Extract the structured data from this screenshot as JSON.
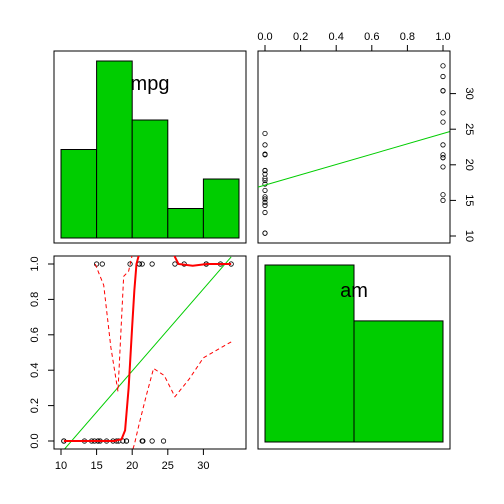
{
  "chart_data": {
    "type": "scatterplot-matrix",
    "variables": [
      "mpg",
      "am"
    ],
    "colors": {
      "hist_fill": "#00cd00",
      "fit_line": "#00cd00",
      "smooth_line": "#ff0000",
      "points": "#000000",
      "axes": "#000000"
    },
    "mpg_hist": {
      "type": "bar",
      "bins": [
        10,
        15,
        20,
        25,
        30,
        35
      ],
      "counts": [
        6,
        12,
        8,
        2,
        4
      ],
      "label": "mpg"
    },
    "am_hist": {
      "type": "bar",
      "bins": [
        0,
        0.5,
        1
      ],
      "counts": [
        19,
        13
      ],
      "label": "am"
    },
    "scatter_mpg_am": {
      "type": "scatter",
      "x_label": "mpg",
      "y_label": "am",
      "xlim": [
        10,
        35
      ],
      "ylim": [
        0,
        1
      ],
      "x_ticks": [
        10,
        15,
        20,
        25,
        30
      ],
      "y_ticks": [
        0.0,
        0.2,
        0.4,
        0.6,
        0.8,
        1.0
      ],
      "points": [
        [
          21.0,
          1
        ],
        [
          21.0,
          1
        ],
        [
          22.8,
          1
        ],
        [
          21.4,
          0
        ],
        [
          18.7,
          0
        ],
        [
          18.1,
          0
        ],
        [
          14.3,
          0
        ],
        [
          24.4,
          0
        ],
        [
          22.8,
          0
        ],
        [
          19.2,
          0
        ],
        [
          17.8,
          0
        ],
        [
          16.4,
          0
        ],
        [
          17.3,
          0
        ],
        [
          15.2,
          0
        ],
        [
          10.4,
          0
        ],
        [
          10.4,
          0
        ],
        [
          14.7,
          0
        ],
        [
          32.4,
          1
        ],
        [
          30.4,
          1
        ],
        [
          33.9,
          1
        ],
        [
          21.5,
          0
        ],
        [
          15.5,
          0
        ],
        [
          15.2,
          0
        ],
        [
          13.3,
          0
        ],
        [
          19.2,
          0
        ],
        [
          27.3,
          1
        ],
        [
          26.0,
          1
        ],
        [
          30.4,
          1
        ],
        [
          15.8,
          1
        ],
        [
          19.7,
          1
        ],
        [
          15.0,
          1
        ],
        [
          21.4,
          1
        ]
      ],
      "fit_line": [
        [
          10.4,
          -0.05
        ],
        [
          33.9,
          1.04
        ]
      ],
      "smooth": [
        [
          10.4,
          0.0
        ],
        [
          17.5,
          0.0
        ],
        [
          18.5,
          0.01
        ],
        [
          19.0,
          0.06
        ],
        [
          19.5,
          0.3
        ],
        [
          20.0,
          0.65
        ],
        [
          20.3,
          0.85
        ],
        [
          20.6,
          1.0
        ],
        [
          21.0,
          1.06
        ],
        [
          25.0,
          1.12
        ],
        [
          26.5,
          1.0
        ],
        [
          28.5,
          0.99
        ],
        [
          30.5,
          1.0
        ],
        [
          33.9,
          1.0
        ]
      ],
      "smooth_upper": [
        [
          14.8,
          1.0
        ],
        [
          16.0,
          0.88
        ],
        [
          17.0,
          0.53
        ],
        [
          18.0,
          0.28
        ],
        [
          18.8,
          0.93
        ],
        [
          19.5,
          0.96
        ],
        [
          20.0,
          1.05
        ]
      ],
      "smooth_lower": [
        [
          19.5,
          -0.12
        ],
        [
          20.3,
          -0.02
        ],
        [
          21.0,
          0.1
        ],
        [
          22.0,
          0.26
        ],
        [
          23.0,
          0.41
        ],
        [
          24.5,
          0.37
        ],
        [
          26.0,
          0.25
        ],
        [
          28.0,
          0.35
        ],
        [
          30.0,
          0.47
        ],
        [
          33.9,
          0.56
        ]
      ]
    },
    "scatter_am_mpg": {
      "type": "scatter",
      "x_label": "am",
      "y_label": "mpg",
      "xlim": [
        0,
        1
      ],
      "ylim": [
        10,
        35
      ],
      "x_ticks": [
        0.0,
        0.2,
        0.4,
        0.6,
        0.8,
        1.0
      ],
      "y_ticks": [
        10,
        15,
        20,
        25,
        30
      ],
      "fit_line": [
        [
          0,
          17.15
        ],
        [
          1,
          24.39
        ]
      ]
    }
  }
}
